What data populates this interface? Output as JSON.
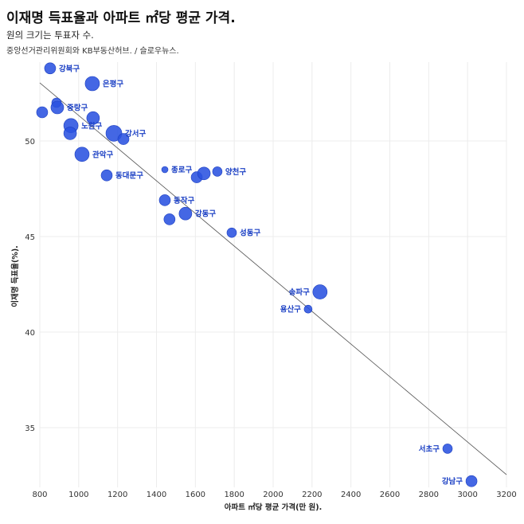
{
  "title": "이재명 득표율과 아파트 ㎡당 평균 가격.",
  "subtitle": "원의 크기는 투표자 수.",
  "source": "중앙선거관리위원회와 KB부동산허브. / 슬로우뉴스.",
  "chart_data": {
    "type": "scatter",
    "xlabel": "아파트 ㎡당 평균 가격(만 원).",
    "ylabel": "이재명 득표율(%).",
    "xlim": [
      800,
      3200
    ],
    "ylim": [
      32,
      54.5
    ],
    "xticks": [
      800,
      1000,
      1200,
      1400,
      1600,
      1800,
      2000,
      2200,
      2400,
      2600,
      2800,
      3000,
      3200
    ],
    "yticks": [
      35,
      40,
      45,
      50
    ],
    "grid": true,
    "color": "#2a52e0",
    "trendline": {
      "x": [
        800,
        3200
      ],
      "y": [
        53.04,
        32.54
      ]
    },
    "points": [
      {
        "label": "강북구",
        "x": 853,
        "y": 53.8,
        "size": 7
      },
      {
        "label": "은평구",
        "x": 1070,
        "y": 53.0,
        "size": 9
      },
      {
        "label": "",
        "x": 886,
        "y": 52.0,
        "size": 6
      },
      {
        "label": "중랑구",
        "x": 890,
        "y": 51.75,
        "size": 8
      },
      {
        "label": "",
        "x": 812,
        "y": 51.5,
        "size": 7
      },
      {
        "label": "",
        "x": 1074,
        "y": 51.2,
        "size": 8
      },
      {
        "label": "노원구",
        "x": 960,
        "y": 50.8,
        "size": 9
      },
      {
        "label": "",
        "x": 956,
        "y": 50.4,
        "size": 8
      },
      {
        "label": "강서구",
        "x": 1181,
        "y": 50.4,
        "size": 10
      },
      {
        "label": "",
        "x": 1230,
        "y": 50.1,
        "size": 7
      },
      {
        "label": "관악구",
        "x": 1017,
        "y": 49.3,
        "size": 9
      },
      {
        "label": "동대문구",
        "x": 1144,
        "y": 48.2,
        "size": 7
      },
      {
        "label": "종로구",
        "x": 1443,
        "y": 48.5,
        "size": 4
      },
      {
        "label": "",
        "x": 1607,
        "y": 48.1,
        "size": 7
      },
      {
        "label": "",
        "x": 1644,
        "y": 48.3,
        "size": 8
      },
      {
        "label": "양천구",
        "x": 1713,
        "y": 48.4,
        "size": 6
      },
      {
        "label": "동작구",
        "x": 1443,
        "y": 46.9,
        "size": 7
      },
      {
        "label": "",
        "x": 1467,
        "y": 45.9,
        "size": 7
      },
      {
        "label": "강동구",
        "x": 1549,
        "y": 46.2,
        "size": 8
      },
      {
        "label": "성동구",
        "x": 1787,
        "y": 45.2,
        "size": 6
      },
      {
        "label": "송파구",
        "x": 2241,
        "y": 42.1,
        "size": 9,
        "label_side": "left"
      },
      {
        "label": "용산구",
        "x": 2180,
        "y": 41.2,
        "size": 5,
        "label_side": "left"
      },
      {
        "label": "서초구",
        "x": 2897,
        "y": 33.9,
        "size": 6,
        "label_side": "left"
      },
      {
        "label": "강남구",
        "x": 3020,
        "y": 32.2,
        "size": 7,
        "label_side": "left"
      }
    ]
  }
}
